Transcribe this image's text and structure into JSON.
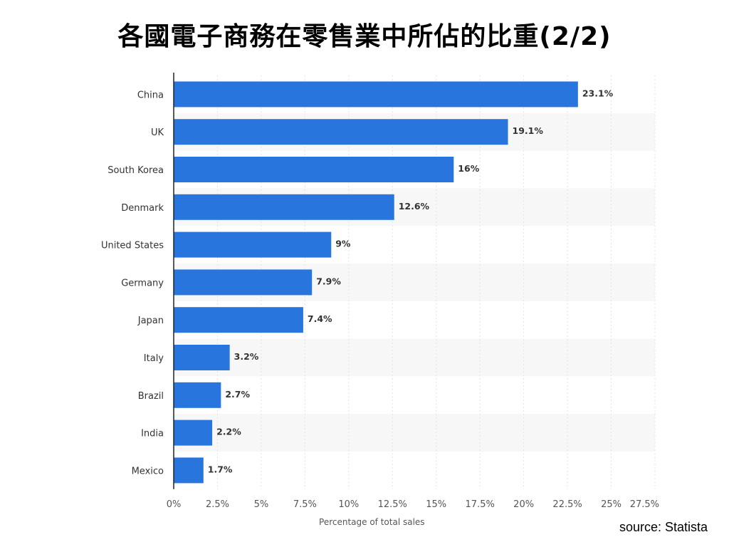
{
  "title": "各國電子商務在零售業中所佔的比重(2/2)",
  "source": "source: Statista",
  "colors": {
    "bar": "#2876dd",
    "stripe": "#f7f7f7",
    "axis": "#222222",
    "grid": "#e3e3e3",
    "label_text": "#333333",
    "tick_text": "#555555"
  },
  "chart_data": {
    "type": "bar",
    "orientation": "horizontal",
    "title": "",
    "xlabel": "Percentage of total sales",
    "ylabel": "",
    "xlim": [
      0,
      27.5
    ],
    "grid": true,
    "legend": "none",
    "categories": [
      "China",
      "UK",
      "South Korea",
      "Denmark",
      "United States",
      "Germany",
      "Japan",
      "Italy",
      "Brazil",
      "India",
      "Mexico"
    ],
    "values": [
      23.1,
      19.1,
      16,
      12.6,
      9,
      7.9,
      7.4,
      3.2,
      2.7,
      2.2,
      1.7
    ],
    "value_labels": [
      "23.1%",
      "19.1%",
      "16%",
      "12.6%",
      "9%",
      "7.9%",
      "7.4%",
      "3.2%",
      "2.7%",
      "2.2%",
      "1.7%"
    ],
    "x_ticks": [
      0,
      2.5,
      5,
      7.5,
      10,
      12.5,
      15,
      17.5,
      20,
      22.5,
      25,
      27.5
    ],
    "x_tick_labels": [
      "0%",
      "2.5%",
      "5%",
      "7.5%",
      "10%",
      "12.5%",
      "15%",
      "17.5%",
      "20%",
      "22.5%",
      "25%",
      "27.5%"
    ]
  }
}
